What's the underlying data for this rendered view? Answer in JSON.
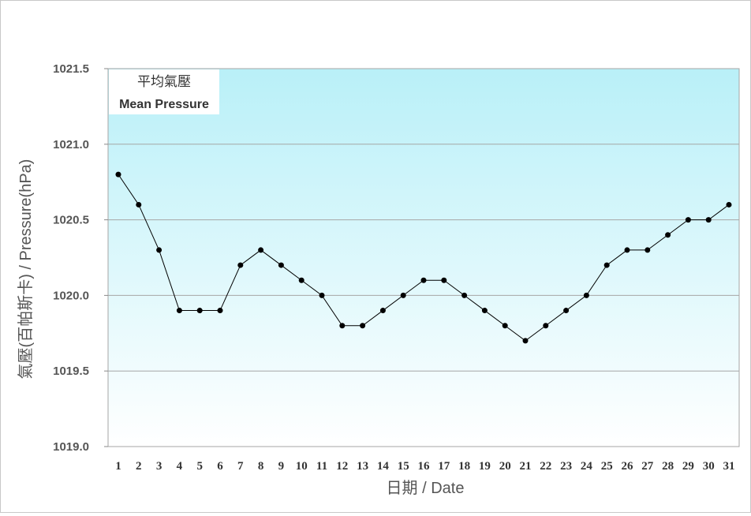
{
  "chart_data": {
    "type": "line",
    "title": "",
    "legend": [
      "平均氣壓",
      "Mean Pressure"
    ],
    "legend_position": "top-left",
    "xlabel": "日期 / Date",
    "ylabel": "氣壓(百帕斯卡) / Pressure(hPa)",
    "ylim": [
      1019.0,
      1021.5
    ],
    "yticks": [
      "1019.0",
      "1019.5",
      "1020.0",
      "1020.5",
      "1021.0",
      "1021.5"
    ],
    "x": [
      1,
      2,
      3,
      4,
      5,
      6,
      7,
      8,
      9,
      10,
      11,
      12,
      13,
      14,
      15,
      16,
      17,
      18,
      19,
      20,
      21,
      22,
      23,
      24,
      25,
      26,
      27,
      28,
      29,
      30,
      31
    ],
    "series": [
      {
        "values": [
          1020.8,
          1020.6,
          1020.3,
          1019.9,
          1019.9,
          1019.9,
          1020.2,
          1020.3,
          1020.2,
          1020.1,
          1020.0,
          1019.8,
          1019.8,
          1019.9,
          1020.0,
          1020.1,
          1020.1,
          1020.0,
          1019.9,
          1019.8,
          1019.7,
          1019.8,
          1019.9,
          1020.0,
          1020.2,
          1020.3,
          1020.3,
          1020.4,
          1020.5,
          1020.5,
          1020.6
        ]
      }
    ],
    "grid": true,
    "colors": {
      "background_top": "#b9f0f8",
      "background_bottom": "#ffffff",
      "line": "#000000",
      "gridline": "#a6a6a6"
    }
  }
}
